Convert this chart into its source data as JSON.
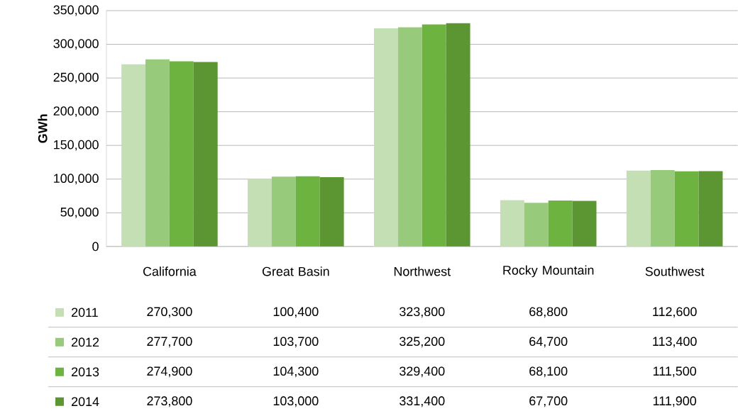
{
  "chart_data": {
    "type": "bar",
    "ylabel": "GWh",
    "categories": [
      "California",
      "Great Basin",
      "Northwest",
      "Rocky Mountain",
      "Southwest"
    ],
    "series": [
      {
        "name": "2011",
        "color": "#c3dfb3",
        "values": [
          270300,
          100400,
          323800,
          68800,
          112600
        ],
        "value_labels": [
          "270,300",
          "100,400",
          "323,800",
          "68,800",
          "112,600"
        ]
      },
      {
        "name": "2012",
        "color": "#97cb7b",
        "values": [
          277700,
          103700,
          325200,
          64700,
          113400
        ],
        "value_labels": [
          "277,700",
          "103,700",
          "325,200",
          "64,700",
          "113,400"
        ]
      },
      {
        "name": "2013",
        "color": "#6db33f",
        "values": [
          274900,
          104300,
          329400,
          68100,
          111500
        ],
        "value_labels": [
          "274,900",
          "104,300",
          "329,400",
          "68,100",
          "111,500"
        ]
      },
      {
        "name": "2014",
        "color": "#5b9632",
        "values": [
          273800,
          103000,
          331400,
          67700,
          111900
        ],
        "value_labels": [
          "273,800",
          "103,000",
          "331,400",
          "67,700",
          "111,900"
        ]
      }
    ],
    "ylim": [
      0,
      350000
    ],
    "yticks": [
      {
        "value": 0,
        "label": "0"
      },
      {
        "value": 50000,
        "label": "50,000"
      },
      {
        "value": 100000,
        "label": "100,000"
      },
      {
        "value": 150000,
        "label": "150,000"
      },
      {
        "value": 200000,
        "label": "200,000"
      },
      {
        "value": 250000,
        "label": "250,000"
      },
      {
        "value": 300000,
        "label": "300,000"
      },
      {
        "value": 350000,
        "label": "350,000"
      }
    ],
    "grid": "y",
    "legend": "bottom"
  }
}
